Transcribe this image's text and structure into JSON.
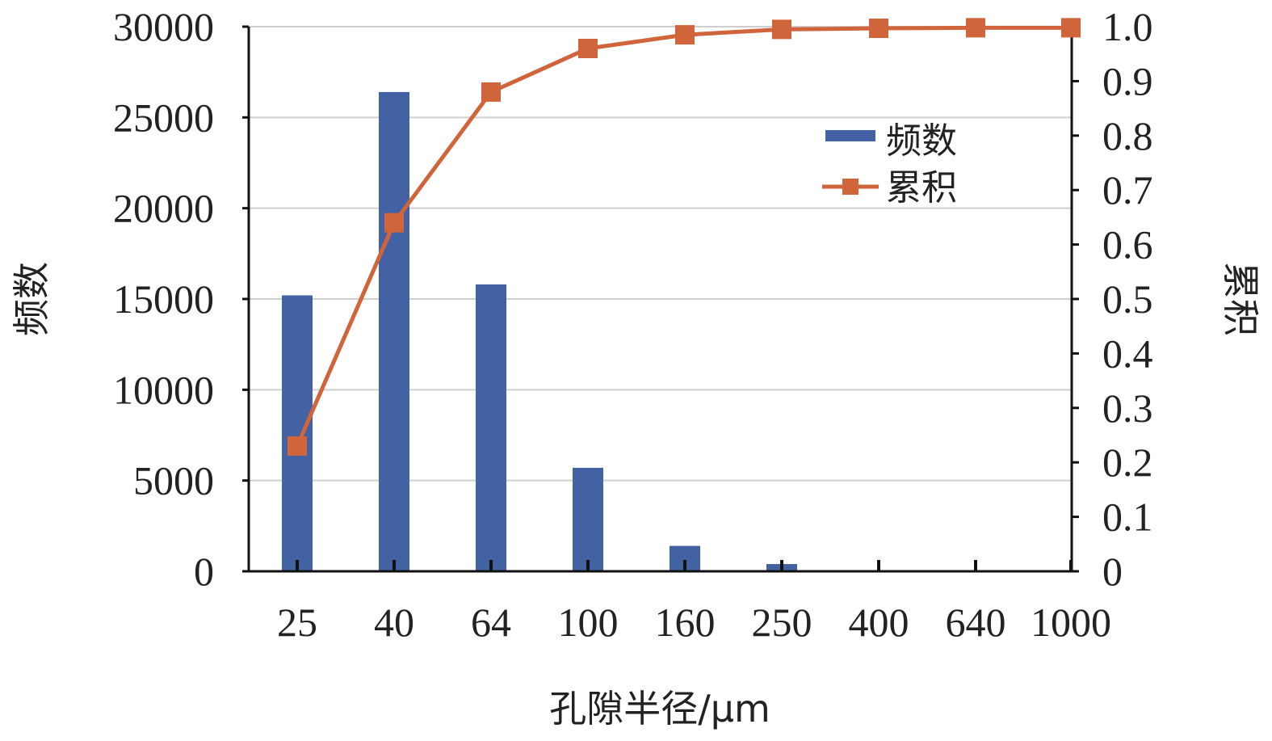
{
  "chart_data": {
    "type": "bar",
    "categories": [
      "25",
      "40",
      "64",
      "100",
      "160",
      "250",
      "400",
      "640",
      "1000"
    ],
    "series": [
      {
        "name": "频数",
        "type": "bar",
        "axis": "left",
        "color": "#4262a4",
        "values": [
          15200,
          26400,
          15800,
          5700,
          1400,
          400,
          0,
          0,
          null
        ]
      },
      {
        "name": "累积",
        "type": "line",
        "axis": "right",
        "color": "#d0643a",
        "marker": "square",
        "values": [
          0.23,
          0.64,
          0.88,
          0.96,
          0.985,
          0.995,
          0.997,
          0.998,
          0.998
        ]
      }
    ],
    "xlabel": "孔隙半径/μm",
    "ylabel": "频数",
    "ylabel_right": "累积",
    "ylim": [
      0,
      30000
    ],
    "ylim_right": [
      0,
      1.0
    ],
    "yticks": [
      "0",
      "5000",
      "10000",
      "15000",
      "20000",
      "25000",
      "30000"
    ],
    "yticks_right": [
      "0",
      "0.1",
      "0.2",
      "0.3",
      "0.4",
      "0.5",
      "0.6",
      "0.7",
      "0.8",
      "0.9",
      "1.0"
    ],
    "grid": true,
    "legend": "top-right"
  }
}
